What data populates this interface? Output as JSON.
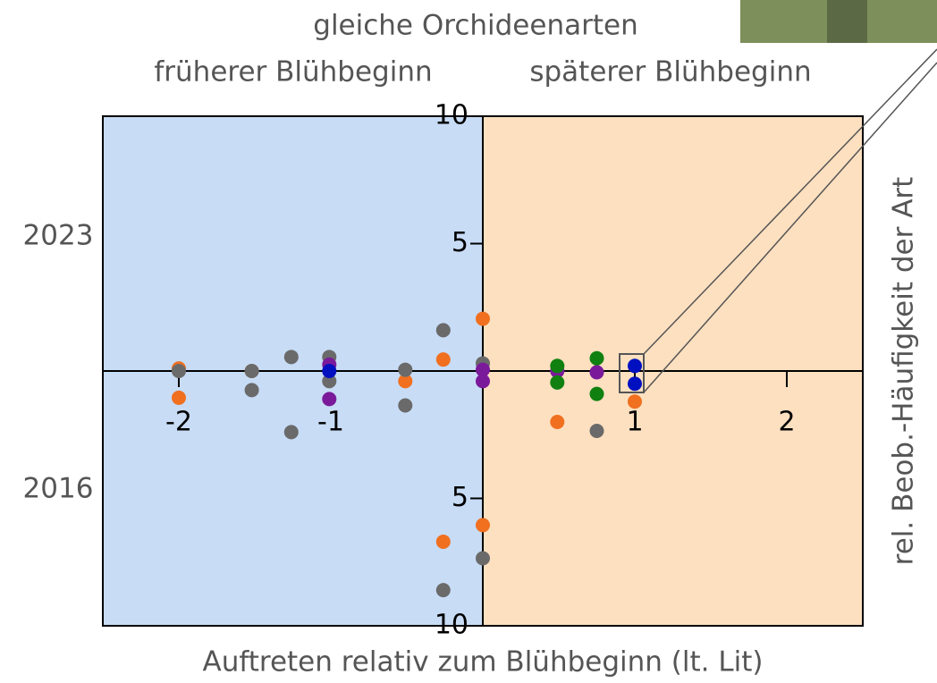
{
  "chart_data": {
    "type": "scatter",
    "title": "gleiche Orchideenarten",
    "left_label": "früherer Blühbeginn",
    "right_label": "späterer Blühbeginn",
    "upper_label": "2023",
    "lower_label": "2016",
    "x_label": "Auftreten relativ zum Blühbeginn (lt. Lit)",
    "y_label": "rel. Beob.-Häufigkeit der Art",
    "xlim": [
      -2.5,
      2.5
    ],
    "xticks": [
      -2,
      -1,
      1,
      2
    ],
    "ylim": [
      -10,
      10
    ],
    "yticks": [
      10,
      5,
      {
        "value": -5,
        "label": "5"
      },
      {
        "value": -10,
        "label": "10"
      }
    ],
    "series": [
      {
        "color": "#f07020",
        "x": [
          -2,
          -2,
          -1.52,
          -0.51,
          -0.26,
          0,
          0.49,
          -0.26,
          0,
          1
        ],
        "y": [
          0.1,
          -1.05,
          0,
          -0.4,
          0.45,
          2.05,
          -2.0,
          -6.7,
          -6.05,
          -1.2
        ]
      },
      {
        "color": "#6a6a6a",
        "x": [
          -2,
          -1.52,
          -1.52,
          -1.26,
          -1.26,
          -1.01,
          -1.01,
          -0.51,
          -0.51,
          -0.26,
          0,
          0,
          -0.26,
          0.75
        ],
        "y": [
          0,
          0,
          -0.75,
          0.55,
          -2.4,
          0.55,
          -0.4,
          0.05,
          -1.35,
          1.6,
          0.3,
          -7.35,
          -8.6,
          -2.35
        ]
      },
      {
        "color": "#7a1a9a",
        "x": [
          -1.01,
          -1.01,
          0,
          0,
          0.49,
          0.75
        ],
        "y": [
          0.25,
          -1.1,
          0.05,
          -0.4,
          0,
          -0.05
        ]
      },
      {
        "color": "#0010c0",
        "x": [
          -1.01,
          1,
          1
        ],
        "y": [
          0,
          0.2,
          -0.5
        ]
      },
      {
        "color": "#108010",
        "x": [
          0.49,
          0.49,
          0.75,
          0.75
        ],
        "y": [
          0.2,
          -0.45,
          0.5,
          -0.9
        ]
      }
    ]
  }
}
